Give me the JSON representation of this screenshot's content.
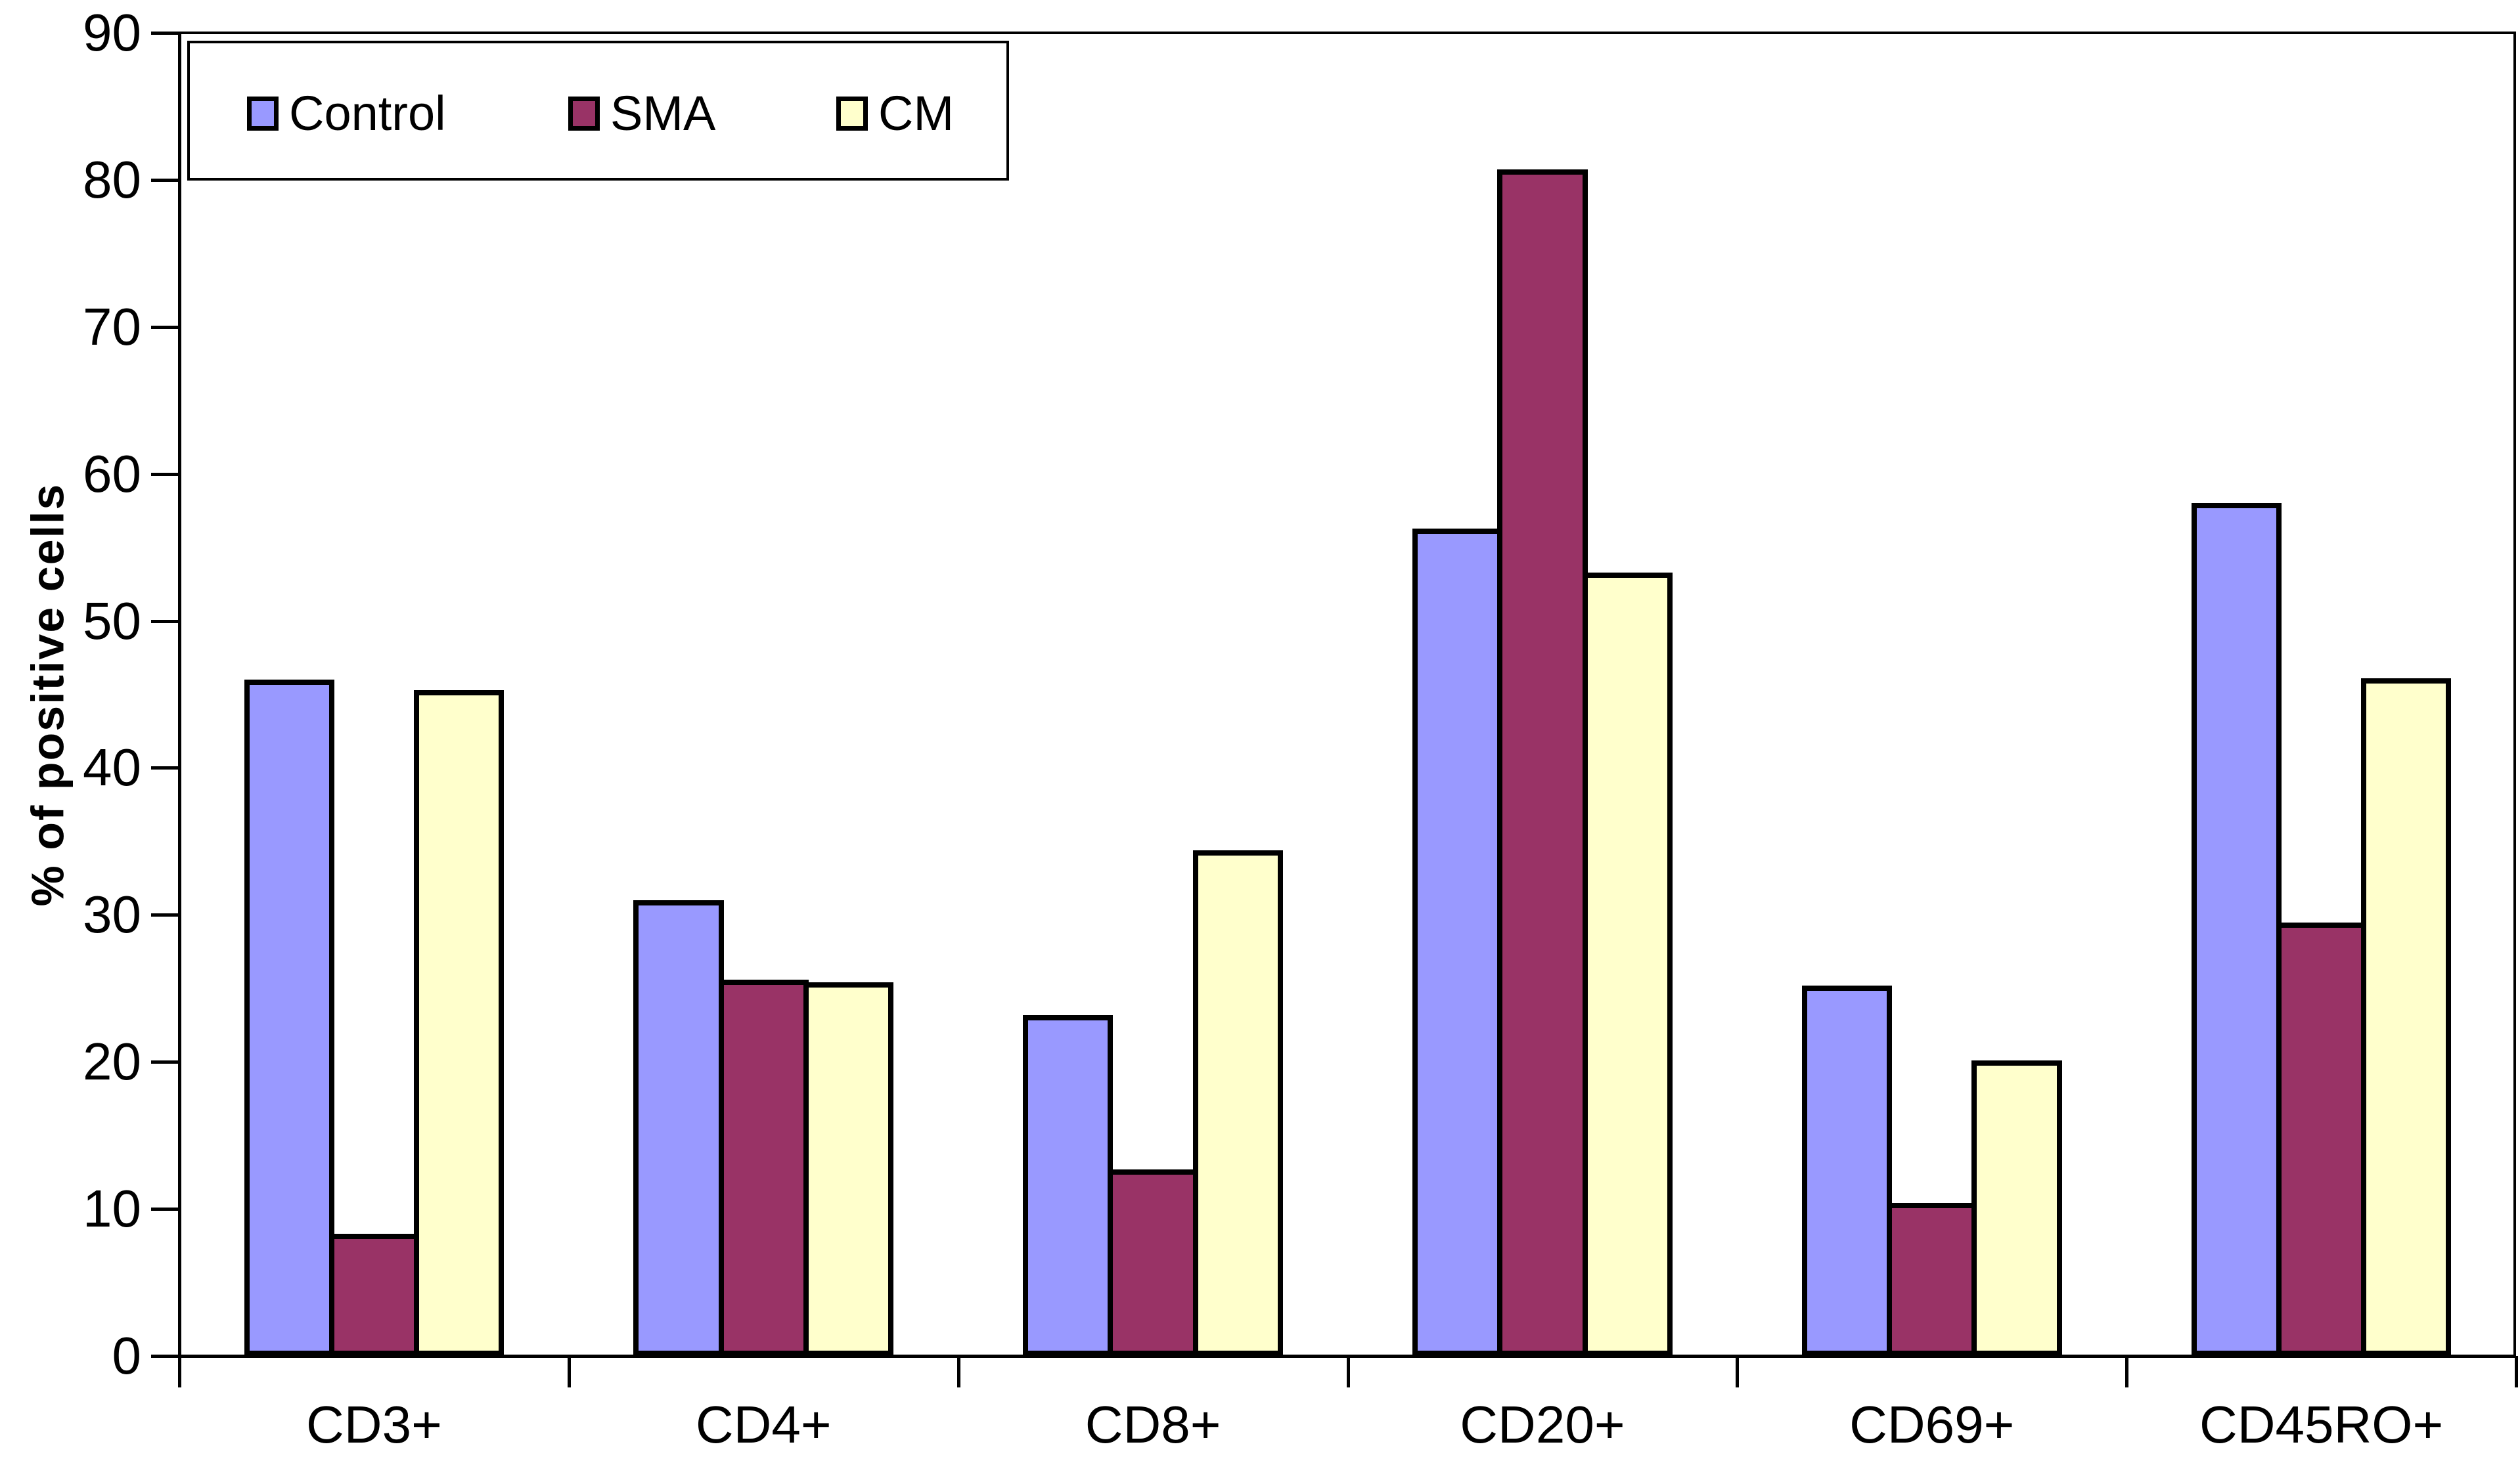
{
  "chart_data": {
    "type": "bar",
    "categories": [
      "CD3+",
      "CD4+",
      "CD8+",
      "CD20+",
      "CD69+",
      "CD45RO+"
    ],
    "series": [
      {
        "name": "Control",
        "color": "#9999FF",
        "values": [
          46.0,
          31.0,
          23.2,
          56.3,
          25.2,
          58.0
        ]
      },
      {
        "name": "SMA",
        "color": "#993366",
        "values": [
          8.3,
          25.6,
          12.7,
          80.7,
          10.4,
          29.5
        ]
      },
      {
        "name": "CM",
        "color": "#FFFFCC",
        "values": [
          45.3,
          25.4,
          34.4,
          53.3,
          20.1,
          46.1
        ]
      }
    ],
    "ylabel": "% of positive cells",
    "ylim": [
      0,
      90
    ],
    "yticks": [
      0,
      10,
      20,
      30,
      40,
      50,
      60,
      70,
      80,
      90
    ],
    "grid": false,
    "legend_position": "top-left",
    "bar_outline_color": "#000000",
    "axis_color": "#000000",
    "background_color": "#FFFFFF"
  }
}
